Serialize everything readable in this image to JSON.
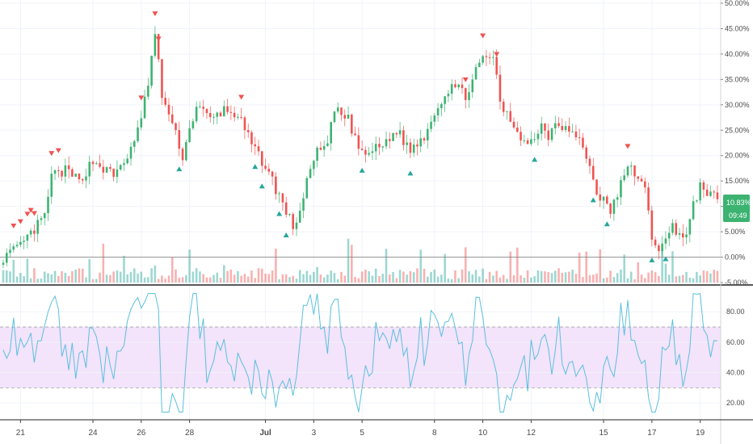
{
  "chart_data": [
    {
      "type": "candlestick",
      "panel": "price",
      "y_format": "percent",
      "ylim": [
        -5,
        50
      ],
      "y_ticks": [
        "50.00%",
        "45.00%",
        "40.00%",
        "35.00%",
        "30.00%",
        "25.00%",
        "20.00%",
        "15.00%",
        "10.00%",
        "5.00%",
        "0.00%",
        "-5.00%"
      ],
      "y_tick_values": [
        50,
        45,
        40,
        35,
        30,
        25,
        20,
        15,
        10,
        5,
        0,
        -5
      ],
      "x_ticks": [
        {
          "label": "21",
          "index": 5
        },
        {
          "label": "24",
          "index": 26
        },
        {
          "label": "26",
          "index": 40
        },
        {
          "label": "28",
          "index": 54
        },
        {
          "label": "Jul",
          "index": 76
        },
        {
          "label": "3",
          "index": 90
        },
        {
          "label": "5",
          "index": 104
        },
        {
          "label": "8",
          "index": 125
        },
        {
          "label": "10",
          "index": 139
        },
        {
          "label": "12",
          "index": 153
        },
        {
          "label": "15",
          "index": 174
        },
        {
          "label": "17",
          "index": 188
        },
        {
          "label": "19",
          "index": 202
        }
      ],
      "x_bold_labels": [
        "Jul"
      ],
      "num_candles": 208,
      "path_anchors": [
        [
          0,
          0
        ],
        [
          4,
          1.5
        ],
        [
          8,
          4.5
        ],
        [
          12,
          8
        ],
        [
          14,
          16
        ],
        [
          18,
          17
        ],
        [
          22,
          15
        ],
        [
          26,
          19
        ],
        [
          32,
          16
        ],
        [
          38,
          22
        ],
        [
          42,
          34
        ],
        [
          44,
          44
        ],
        [
          46,
          32
        ],
        [
          52,
          20
        ],
        [
          56,
          30
        ],
        [
          60,
          27
        ],
        [
          64,
          29
        ],
        [
          68,
          28
        ],
        [
          72,
          22
        ],
        [
          76,
          18
        ],
        [
          80,
          12
        ],
        [
          84,
          6
        ],
        [
          86,
          9
        ],
        [
          90,
          20
        ],
        [
          94,
          22
        ],
        [
          96,
          29
        ],
        [
          100,
          27
        ],
        [
          104,
          20
        ],
        [
          110,
          22
        ],
        [
          114,
          25
        ],
        [
          118,
          21
        ],
        [
          122,
          24
        ],
        [
          126,
          30
        ],
        [
          130,
          34
        ],
        [
          134,
          32
        ],
        [
          138,
          38
        ],
        [
          142,
          40
        ],
        [
          144,
          30
        ],
        [
          148,
          26
        ],
        [
          152,
          22
        ],
        [
          156,
          26
        ],
        [
          158,
          24
        ],
        [
          160,
          27
        ],
        [
          164,
          25
        ],
        [
          168,
          22
        ],
        [
          172,
          13
        ],
        [
          176,
          9
        ],
        [
          180,
          16
        ],
        [
          182,
          18
        ],
        [
          186,
          13
        ],
        [
          188,
          4
        ],
        [
          190,
          2
        ],
        [
          192,
          3
        ],
        [
          194,
          6
        ],
        [
          198,
          4
        ],
        [
          200,
          10
        ],
        [
          202,
          14
        ],
        [
          204,
          13
        ],
        [
          207,
          11
        ]
      ],
      "sell_signal_indices": [
        3,
        5,
        7,
        8,
        9,
        14,
        16,
        40,
        44,
        45,
        69,
        134,
        139,
        143,
        181
      ],
      "buy_signal_indices": [
        51,
        73,
        75,
        80,
        82,
        104,
        118,
        154,
        171,
        175,
        188,
        192
      ],
      "last_value_label": "10.83%",
      "last_value": 10.83,
      "countdown_label": "09:49",
      "colors": {
        "up": "#26a69a",
        "down": "#ef5350",
        "up_bright": "#3cb371",
        "badge": "#3cb371",
        "grid": "#f0f3fa",
        "zero_line": "#888888"
      },
      "volume_shown": true
    },
    {
      "type": "line",
      "panel": "oscillator",
      "indicator": "RSI-like oscillator",
      "ylim": [
        10,
        95
      ],
      "y_ticks": [
        "80.00",
        "60.00",
        "40.00",
        "20.00"
      ],
      "y_tick_values": [
        80,
        60,
        40,
        20
      ],
      "band": {
        "upper": 70,
        "lower": 30,
        "fill": "#f3e3fb",
        "edge": "#a0a0a0"
      },
      "line_color": "#5bc0de",
      "num_points": 208
    }
  ]
}
